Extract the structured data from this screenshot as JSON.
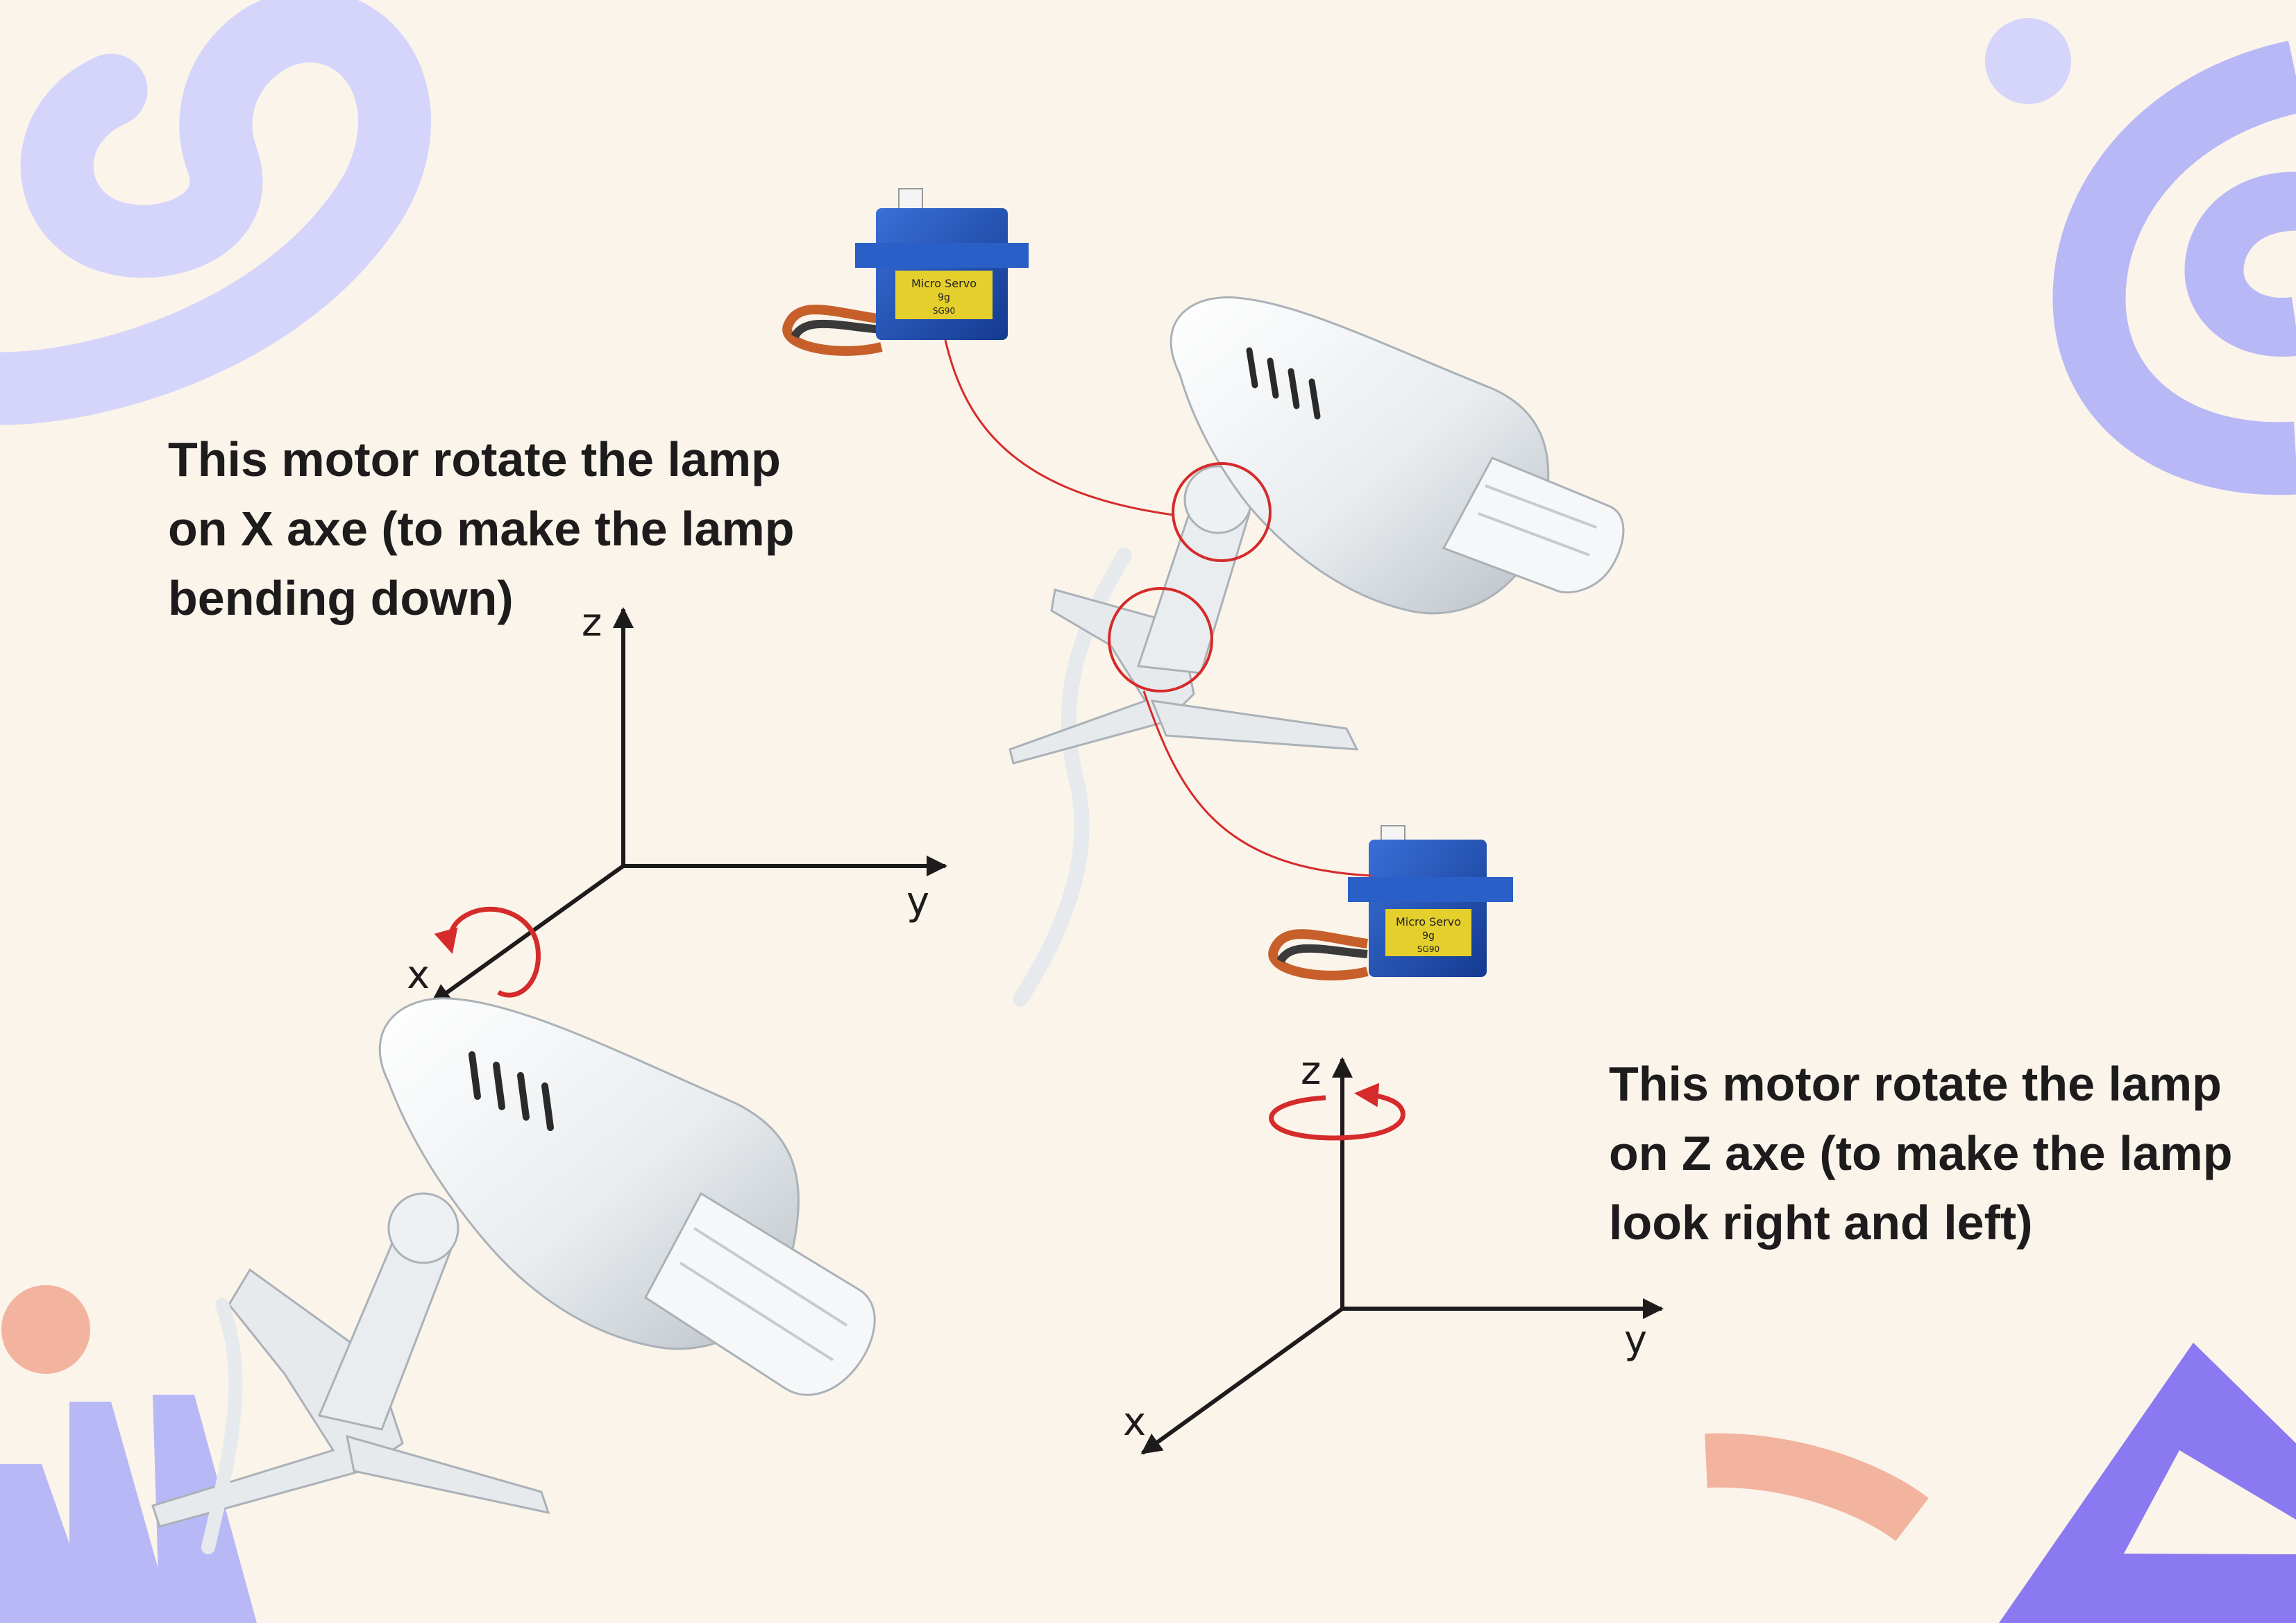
{
  "caption_x_motor": {
    "lines": [
      "This motor rotate the lamp",
      "on X axe (to make the lamp",
      "bending down)"
    ]
  },
  "caption_z_motor": {
    "lines": [
      "This motor rotate the lamp",
      "on Z axe (to make the lamp",
      "look right and left)"
    ]
  },
  "axes_left": {
    "z": "z",
    "y": "y",
    "x": "x"
  },
  "axes_right": {
    "z": "z",
    "y": "y",
    "x": "x"
  },
  "servo_label": {
    "line1": "Micro Servo",
    "line2": "9g",
    "line3": "SG90"
  },
  "colors": {
    "background": "#fbf4ea",
    "decor_lavender": "#b9b8f6",
    "decor_light_lavender": "#d5d4fb",
    "decor_violet": "#8a79f0",
    "decor_peach": "#f2b39f",
    "rotation_arrow": "#d52b2b",
    "servo_blue": "#1f4fb8",
    "lamp_white": "#eef1f3",
    "text": "#1d1b1b"
  },
  "icons": {
    "x_rotation": "counter-clockwise-arrow-icon",
    "z_rotation": "counter-clockwise-arrow-icon"
  }
}
